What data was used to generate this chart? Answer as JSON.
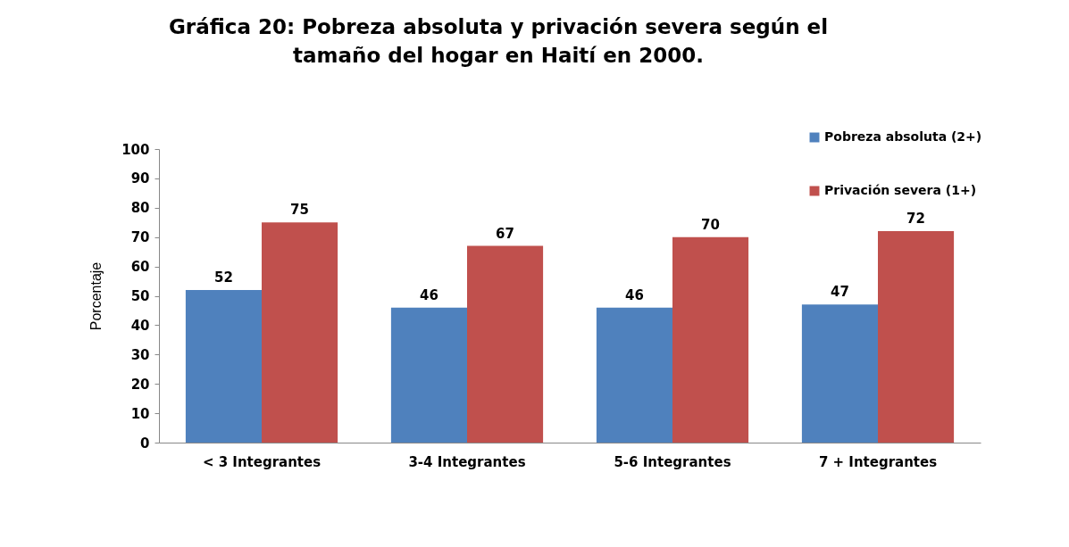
{
  "chart_data": {
    "type": "bar",
    "title": "Gráfica 20: Pobreza absoluta y privación severa según el tamaño del hogar en Haití en 2000.",
    "ylabel": "Porcentaje",
    "categories": [
      "< 3 Integrantes",
      "3-4 Integrantes",
      "5-6 Integrantes",
      "7 + Integrantes"
    ],
    "series": [
      {
        "name": "Pobreza absoluta (2+)",
        "color": "#4f81bd",
        "values": [
          52,
          46,
          46,
          47
        ]
      },
      {
        "name": "Privación severa      (1+)",
        "color": "#c0504d",
        "values": [
          75,
          67,
          70,
          72
        ]
      }
    ],
    "ylim": [
      0,
      100
    ],
    "yticks": [
      0,
      10,
      20,
      30,
      40,
      50,
      60,
      70,
      80,
      90,
      100
    ],
    "grid": false,
    "legend": "top right",
    "data_labels": true
  }
}
